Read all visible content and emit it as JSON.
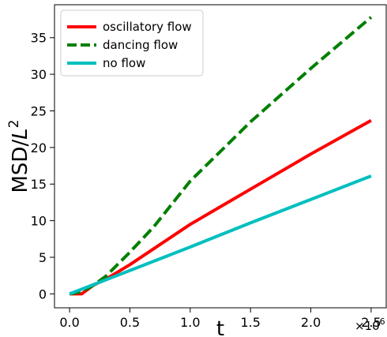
{
  "chart_data": {
    "type": "line",
    "xlabel": "t",
    "ylabel_text": "MSD/",
    "ylabel_var": "L",
    "ylabel_sup": "2",
    "x_multiplier_base": "×10",
    "x_multiplier_exp": "6",
    "xlim": [
      -0.125,
      2.625
    ],
    "ylim": [
      -1.9,
      39.5
    ],
    "xticks": [
      0.0,
      0.5,
      1.0,
      1.5,
      2.0,
      2.5
    ],
    "xtick_labels": [
      "0.0",
      "0.5",
      "1.0",
      "1.5",
      "2.0",
      "2.5"
    ],
    "yticks": [
      0,
      5,
      10,
      15,
      20,
      25,
      30,
      35
    ],
    "ytick_labels": [
      "0",
      "5",
      "10",
      "15",
      "20",
      "25",
      "30",
      "35"
    ],
    "grid": false,
    "legend_position": "top-left",
    "series": [
      {
        "name": "oscillatory flow",
        "color": "#ff0000",
        "dash": "solid",
        "x": [
          0.0,
          0.1,
          0.2,
          0.3,
          0.5,
          1.0,
          1.5,
          2.0,
          2.5
        ],
        "y": [
          0.0,
          0.0,
          1.2,
          2.0,
          4.0,
          9.5,
          14.3,
          19.1,
          23.7
        ]
      },
      {
        "name": "dancing flow",
        "color": "#007f00",
        "dash": "dashed",
        "x": [
          0.0,
          0.1,
          0.2,
          0.3,
          0.5,
          0.7,
          1.0,
          1.5,
          2.0,
          2.5
        ],
        "y": [
          0.0,
          0.3,
          1.2,
          2.4,
          5.7,
          9.2,
          15.4,
          23.5,
          30.8,
          37.8
        ]
      },
      {
        "name": "no flow",
        "color": "#00bfbf",
        "dash": "solid",
        "x": [
          0.0,
          0.5,
          1.0,
          1.5,
          2.0,
          2.5
        ],
        "y": [
          0.0,
          3.2,
          6.4,
          9.7,
          12.9,
          16.1
        ]
      }
    ]
  }
}
